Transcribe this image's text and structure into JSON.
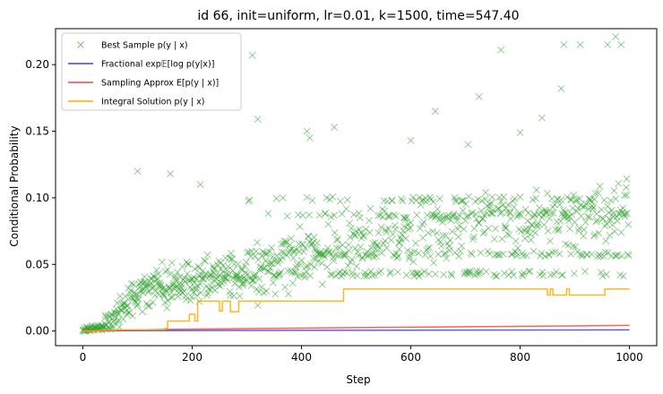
{
  "chart_data": {
    "type": "line",
    "title": "id 66, init=uniform, lr=0.01, k=1500, time=547.40",
    "xlabel": "Step",
    "ylabel": "Conditional Probability",
    "xlim": [
      -50,
      1050
    ],
    "ylim": [
      -0.011,
      0.227
    ],
    "xticks": [
      0,
      200,
      400,
      600,
      800,
      1000
    ],
    "yticks": [
      0.0,
      0.05,
      0.1,
      0.15,
      0.2
    ],
    "xtick_labels": [
      "0",
      "200",
      "400",
      "600",
      "800",
      "1000"
    ],
    "ytick_labels": [
      "0.00",
      "0.05",
      "0.10",
      "0.15",
      "0.20"
    ],
    "grid": false,
    "legend_position": "top-left",
    "legend_entries": [
      "Best Sample p(y | x)",
      "Fractional exp𝔼[log p(y|x)]",
      "Sampling Approx E[p(y | x)]",
      "Integral Solution p(y | x)"
    ],
    "series": [
      {
        "name": "Best Sample p(y | x)",
        "kind": "scatter",
        "marker": "x",
        "color": "#2ca02c",
        "generator": {
          "n": 1000,
          "seed": 66,
          "phases": [
            {
              "x0": 0,
              "x1": 40,
              "mean0": 0.001,
              "mean1": 0.003,
              "spread": 0.002
            },
            {
              "x0": 40,
              "x1": 100,
              "mean0": 0.003,
              "mean1": 0.03,
              "spread": 0.012
            },
            {
              "x0": 100,
              "x1": 300,
              "mean0": 0.03,
              "mean1": 0.045,
              "spread": 0.015
            },
            {
              "x0": 300,
              "x1": 550,
              "mean0": 0.045,
              "mean1": 0.07,
              "spread": 0.022
            },
            {
              "x0": 550,
              "x1": 1000,
              "mean0": 0.075,
              "mean1": 0.09,
              "spread": 0.022
            }
          ],
          "levels": [
            0.043,
            0.058,
            0.087,
            0.099
          ],
          "outliers": [
            [
              100,
              0.12
            ],
            [
              160,
              0.118
            ],
            [
              215,
              0.11
            ],
            [
              310,
              0.207
            ],
            [
              320,
              0.159
            ],
            [
              410,
              0.15
            ],
            [
              415,
              0.145
            ],
            [
              460,
              0.153
            ],
            [
              600,
              0.143
            ],
            [
              645,
              0.165
            ],
            [
              705,
              0.14
            ],
            [
              725,
              0.176
            ],
            [
              765,
              0.211
            ],
            [
              800,
              0.149
            ],
            [
              840,
              0.16
            ],
            [
              875,
              0.182
            ],
            [
              880,
              0.215
            ],
            [
              910,
              0.215
            ],
            [
              960,
              0.215
            ],
            [
              975,
              0.221
            ],
            [
              985,
              0.215
            ],
            [
              995,
              0.102
            ]
          ]
        }
      },
      {
        "name": "Fractional exp𝔼[log p(y|x)]",
        "kind": "line",
        "color": "#4444cc",
        "points": [
          [
            0,
            0.0001
          ],
          [
            100,
            0.0002
          ],
          [
            300,
            0.0004
          ],
          [
            600,
            0.0006
          ],
          [
            1000,
            0.0008
          ]
        ]
      },
      {
        "name": "Sampling Approx E[p(y | x)]",
        "kind": "line",
        "color": "#ff4444",
        "points": [
          [
            0,
            0.0003
          ],
          [
            60,
            0.0005
          ],
          [
            150,
            0.0012
          ],
          [
            300,
            0.0018
          ],
          [
            500,
            0.0025
          ],
          [
            700,
            0.0032
          ],
          [
            1000,
            0.0042
          ]
        ]
      },
      {
        "name": "Integral Solution p(y | x)",
        "kind": "step",
        "color": "#ffaa00",
        "points": [
          [
            0,
            0.0
          ],
          [
            30,
            0.0
          ],
          [
            30,
            0.0005
          ],
          [
            60,
            0.0005
          ],
          [
            60,
            0.001
          ],
          [
            150,
            0.001
          ],
          [
            150,
            0.002
          ],
          [
            155,
            0.002
          ],
          [
            155,
            0.0075
          ],
          [
            195,
            0.0075
          ],
          [
            195,
            0.0125
          ],
          [
            205,
            0.0125
          ],
          [
            205,
            0.0075
          ],
          [
            210,
            0.0075
          ],
          [
            210,
            0.0225
          ],
          [
            250,
            0.0225
          ],
          [
            250,
            0.015
          ],
          [
            255,
            0.015
          ],
          [
            255,
            0.0225
          ],
          [
            270,
            0.0225
          ],
          [
            270,
            0.0145
          ],
          [
            285,
            0.0145
          ],
          [
            285,
            0.0225
          ],
          [
            477,
            0.0225
          ],
          [
            477,
            0.0315
          ],
          [
            850,
            0.0315
          ],
          [
            850,
            0.027
          ],
          [
            855,
            0.027
          ],
          [
            855,
            0.0315
          ],
          [
            860,
            0.0315
          ],
          [
            860,
            0.027
          ],
          [
            885,
            0.027
          ],
          [
            885,
            0.0315
          ],
          [
            890,
            0.0315
          ],
          [
            890,
            0.027
          ],
          [
            955,
            0.027
          ],
          [
            955,
            0.0315
          ],
          [
            1000,
            0.0315
          ]
        ]
      }
    ]
  }
}
